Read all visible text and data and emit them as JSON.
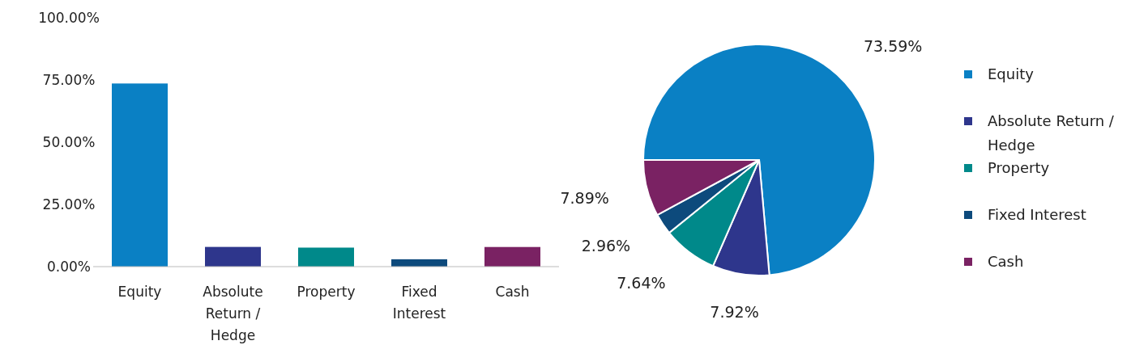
{
  "chart_data": [
    {
      "type": "bar",
      "categories": [
        "Equity",
        "Absolute Return / Hedge",
        "Property",
        "Fixed Interest",
        "Cash"
      ],
      "values": [
        73.59,
        7.92,
        7.64,
        2.96,
        7.89
      ],
      "colors": [
        "#0a80c4",
        "#2e368c",
        "#00898a",
        "#0d4a7c",
        "#7a2263"
      ],
      "ylim": [
        0,
        100
      ],
      "yticks": [
        {
          "value": 0,
          "label": "0.00%"
        },
        {
          "value": 25,
          "label": "25.00%"
        },
        {
          "value": 50,
          "label": "50.00%"
        },
        {
          "value": 75,
          "label": "75.00%"
        },
        {
          "value": 100,
          "label": "100.00%"
        }
      ],
      "grid": false
    },
    {
      "type": "pie",
      "categories": [
        "Equity",
        "Absolute Return / Hedge",
        "Property",
        "Fixed Interest",
        "Cash"
      ],
      "values": [
        73.59,
        7.92,
        7.64,
        2.96,
        7.89
      ],
      "colors": [
        "#0a80c4",
        "#2e368c",
        "#00898a",
        "#0d4a7c",
        "#7a2263"
      ],
      "value_labels": [
        "73.59%",
        "7.92%",
        "7.64%",
        "2.96%",
        "7.89%"
      ],
      "legend": "right"
    }
  ]
}
